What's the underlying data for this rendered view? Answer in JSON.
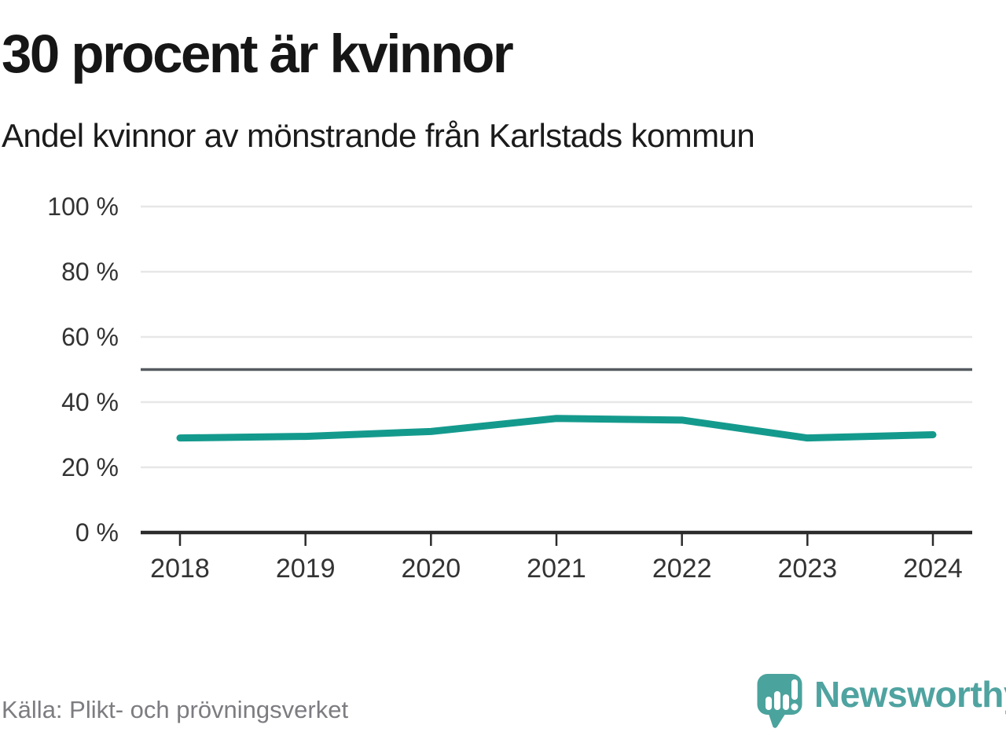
{
  "header": {
    "title": "30 procent är kvinnor",
    "subtitle": "Andel kvinnor av mönstrande från Karlstads kommun"
  },
  "chart_data": {
    "type": "line",
    "title": "30 procent är kvinnor",
    "subtitle": "Andel kvinnor av mönstrande från Karlstads kommun",
    "x": [
      "2018",
      "2019",
      "2020",
      "2021",
      "2022",
      "2023",
      "2024"
    ],
    "series": [
      {
        "name": "Andel kvinnor av mönstrande",
        "color": "#149a8d",
        "values": [
          29,
          29.5,
          31,
          35,
          34.5,
          29,
          30
        ]
      }
    ],
    "ylim": [
      0,
      100
    ],
    "y_ticks": [
      0,
      20,
      40,
      60,
      80,
      100
    ],
    "y_tick_labels": [
      "0 %",
      "20 %",
      "40 %",
      "60 %",
      "80 %",
      "100 %"
    ],
    "reference_line": {
      "value": 50
    },
    "grid": true,
    "legend": "none",
    "xlabel": "",
    "ylabel": ""
  },
  "footer": {
    "source": "Källa: Plikt- och prövningsverket",
    "brand": "Newsworthy"
  },
  "colors": {
    "page_bg": "#ffffff",
    "line": "#149a8d",
    "grid": "#e7e7e7",
    "reference": "#565b61",
    "axis": "#2b2b2b",
    "tick_label": "#333333",
    "title": "#161616",
    "subtitle": "#1b1b1b",
    "source": "#7c7c81",
    "brand": "#4fa3a0",
    "logo_mark": "#4ba39d",
    "logo_glyph": "#ffffff"
  }
}
